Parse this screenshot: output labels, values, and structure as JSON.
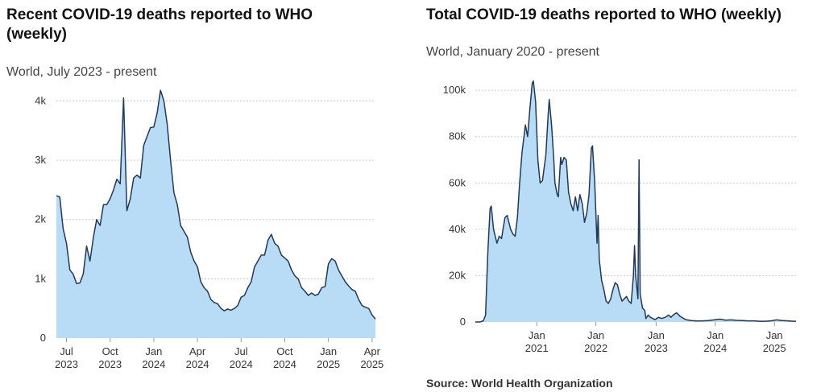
{
  "colors": {
    "line": "#1f3a5c",
    "fill": "#b8dcf6",
    "grid": "#cccccc"
  },
  "source_text": "Source: World Health Organization",
  "chart_data": [
    {
      "type": "area",
      "title": "Recent COVID-19 deaths reported to WHO (weekly)",
      "subtitle": "World, July 2023 - present",
      "ylim": [
        0,
        4250
      ],
      "grid": true,
      "yticks": [
        {
          "v": 0,
          "label": "0"
        },
        {
          "v": 1000,
          "label": "1k"
        },
        {
          "v": 2000,
          "label": "2k"
        },
        {
          "v": 3000,
          "label": "3k"
        },
        {
          "v": 4000,
          "label": "4k"
        }
      ],
      "xlim": [
        0,
        95
      ],
      "xticks": [
        {
          "x": 3,
          "line1": "Jul",
          "line2": "2023"
        },
        {
          "x": 16,
          "line1": "Oct",
          "line2": "2023"
        },
        {
          "x": 29,
          "line1": "Jan",
          "line2": "2024"
        },
        {
          "x": 42,
          "line1": "Apr",
          "line2": "2024"
        },
        {
          "x": 55,
          "line1": "Jul",
          "line2": "2024"
        },
        {
          "x": 68,
          "line1": "Oct",
          "line2": "2024"
        },
        {
          "x": 81,
          "line1": "Jan",
          "line2": "2025"
        },
        {
          "x": 94,
          "line1": "Apr",
          "line2": "2025"
        }
      ],
      "values": [
        2400,
        2380,
        1850,
        1600,
        1150,
        1080,
        920,
        930,
        1080,
        1550,
        1300,
        1700,
        2000,
        1900,
        2250,
        2250,
        2350,
        2500,
        2680,
        2600,
        4050,
        2150,
        2350,
        2700,
        2750,
        2700,
        3250,
        3400,
        3550,
        3560,
        3800,
        4180,
        4000,
        3600,
        3000,
        2450,
        2250,
        1900,
        1800,
        1700,
        1450,
        1300,
        1200,
        950,
        850,
        790,
        650,
        600,
        580,
        500,
        460,
        490,
        470,
        500,
        550,
        690,
        720,
        850,
        950,
        1200,
        1300,
        1400,
        1400,
        1650,
        1750,
        1600,
        1550,
        1400,
        1350,
        1300,
        1150,
        1050,
        1000,
        850,
        790,
        720,
        760,
        720,
        740,
        850,
        870,
        1250,
        1340,
        1300,
        1150,
        1050,
        950,
        880,
        820,
        790,
        650,
        550,
        520,
        500,
        390,
        320
      ]
    },
    {
      "type": "area",
      "title": "Total COVID-19 deaths reported to WHO (weekly)",
      "subtitle": "World, January 2020 - present",
      "ylim": [
        0,
        107000
      ],
      "grid": true,
      "yticks": [
        {
          "v": 0,
          "label": "0"
        },
        {
          "v": 20000,
          "label": "20k"
        },
        {
          "v": 40000,
          "label": "40k"
        },
        {
          "v": 60000,
          "label": "60k"
        },
        {
          "v": 80000,
          "label": "80k"
        },
        {
          "v": 100000,
          "label": "100k"
        }
      ],
      "xlim": [
        0,
        282
      ],
      "xticks": [
        {
          "x": 54,
          "line1": "Jan",
          "line2": "2021"
        },
        {
          "x": 106,
          "line1": "Jan",
          "line2": "2022"
        },
        {
          "x": 159,
          "line1": "Jan",
          "line2": "2023"
        },
        {
          "x": 211,
          "line1": "Jan",
          "line2": "2024"
        },
        {
          "x": 263,
          "line1": "Jan",
          "line2": "2025"
        }
      ],
      "points": [
        [
          0,
          0
        ],
        [
          4,
          0
        ],
        [
          7,
          500
        ],
        [
          9,
          3000
        ],
        [
          11,
          30000
        ],
        [
          13,
          49000
        ],
        [
          14,
          50000
        ],
        [
          16,
          40000
        ],
        [
          19,
          34000
        ],
        [
          21,
          37000
        ],
        [
          23,
          36000
        ],
        [
          26,
          45000
        ],
        [
          28,
          46000
        ],
        [
          31,
          40000
        ],
        [
          33,
          38000
        ],
        [
          35,
          37000
        ],
        [
          37,
          45000
        ],
        [
          39,
          60000
        ],
        [
          41,
          73000
        ],
        [
          44,
          85000
        ],
        [
          46,
          80000
        ],
        [
          48,
          92000
        ],
        [
          50,
          103000
        ],
        [
          51,
          104000
        ],
        [
          53,
          95000
        ],
        [
          55,
          70000
        ],
        [
          57,
          60000
        ],
        [
          59,
          61000
        ],
        [
          62,
          72000
        ],
        [
          64,
          89000
        ],
        [
          65,
          96000
        ],
        [
          67,
          85000
        ],
        [
          69,
          70000
        ],
        [
          70,
          60000
        ],
        [
          72,
          55000
        ],
        [
          73,
          54000
        ],
        [
          75,
          71000
        ],
        [
          76,
          68000
        ],
        [
          78,
          71000
        ],
        [
          80,
          70000
        ],
        [
          82,
          56000
        ],
        [
          84,
          51000
        ],
        [
          86,
          48000
        ],
        [
          88,
          54000
        ],
        [
          90,
          48000
        ],
        [
          92,
          55000
        ],
        [
          94,
          51000
        ],
        [
          96,
          43000
        ],
        [
          98,
          47000
        ],
        [
          100,
          55000
        ],
        [
          102,
          75000
        ],
        [
          103,
          76000
        ],
        [
          105,
          60000
        ],
        [
          107,
          34000
        ],
        [
          108,
          46000
        ],
        [
          109,
          27000
        ],
        [
          111,
          18000
        ],
        [
          113,
          14000
        ],
        [
          115,
          9000
        ],
        [
          117,
          8000
        ],
        [
          119,
          10000
        ],
        [
          121,
          14000
        ],
        [
          123,
          17000
        ],
        [
          125,
          16000
        ],
        [
          127,
          12000
        ],
        [
          129,
          9000
        ],
        [
          131,
          10000
        ],
        [
          133,
          11000
        ],
        [
          135,
          9000
        ],
        [
          137,
          8000
        ],
        [
          139,
          20000
        ],
        [
          140,
          33000
        ],
        [
          141,
          20000
        ],
        [
          143,
          10000
        ],
        [
          144,
          70000
        ],
        [
          145,
          12000
        ],
        [
          147,
          6000
        ],
        [
          149,
          5000
        ],
        [
          150,
          1500
        ],
        [
          152,
          3000
        ],
        [
          154,
          2000
        ],
        [
          156,
          1500
        ],
        [
          158,
          1000
        ],
        [
          161,
          2000
        ],
        [
          164,
          1500
        ],
        [
          167,
          2000
        ],
        [
          170,
          3000
        ],
        [
          172,
          2000
        ],
        [
          174,
          3000
        ],
        [
          177,
          4000
        ],
        [
          180,
          2500
        ],
        [
          185,
          1000
        ],
        [
          190,
          600
        ],
        [
          195,
          400
        ],
        [
          200,
          500
        ],
        [
          205,
          600
        ],
        [
          210,
          900
        ],
        [
          215,
          1200
        ],
        [
          220,
          800
        ],
        [
          225,
          900
        ],
        [
          230,
          700
        ],
        [
          235,
          600
        ],
        [
          240,
          500
        ],
        [
          245,
          500
        ],
        [
          250,
          300
        ],
        [
          255,
          300
        ],
        [
          260,
          500
        ],
        [
          265,
          900
        ],
        [
          270,
          600
        ],
        [
          275,
          500
        ],
        [
          280,
          300
        ],
        [
          282,
          300
        ]
      ]
    }
  ]
}
